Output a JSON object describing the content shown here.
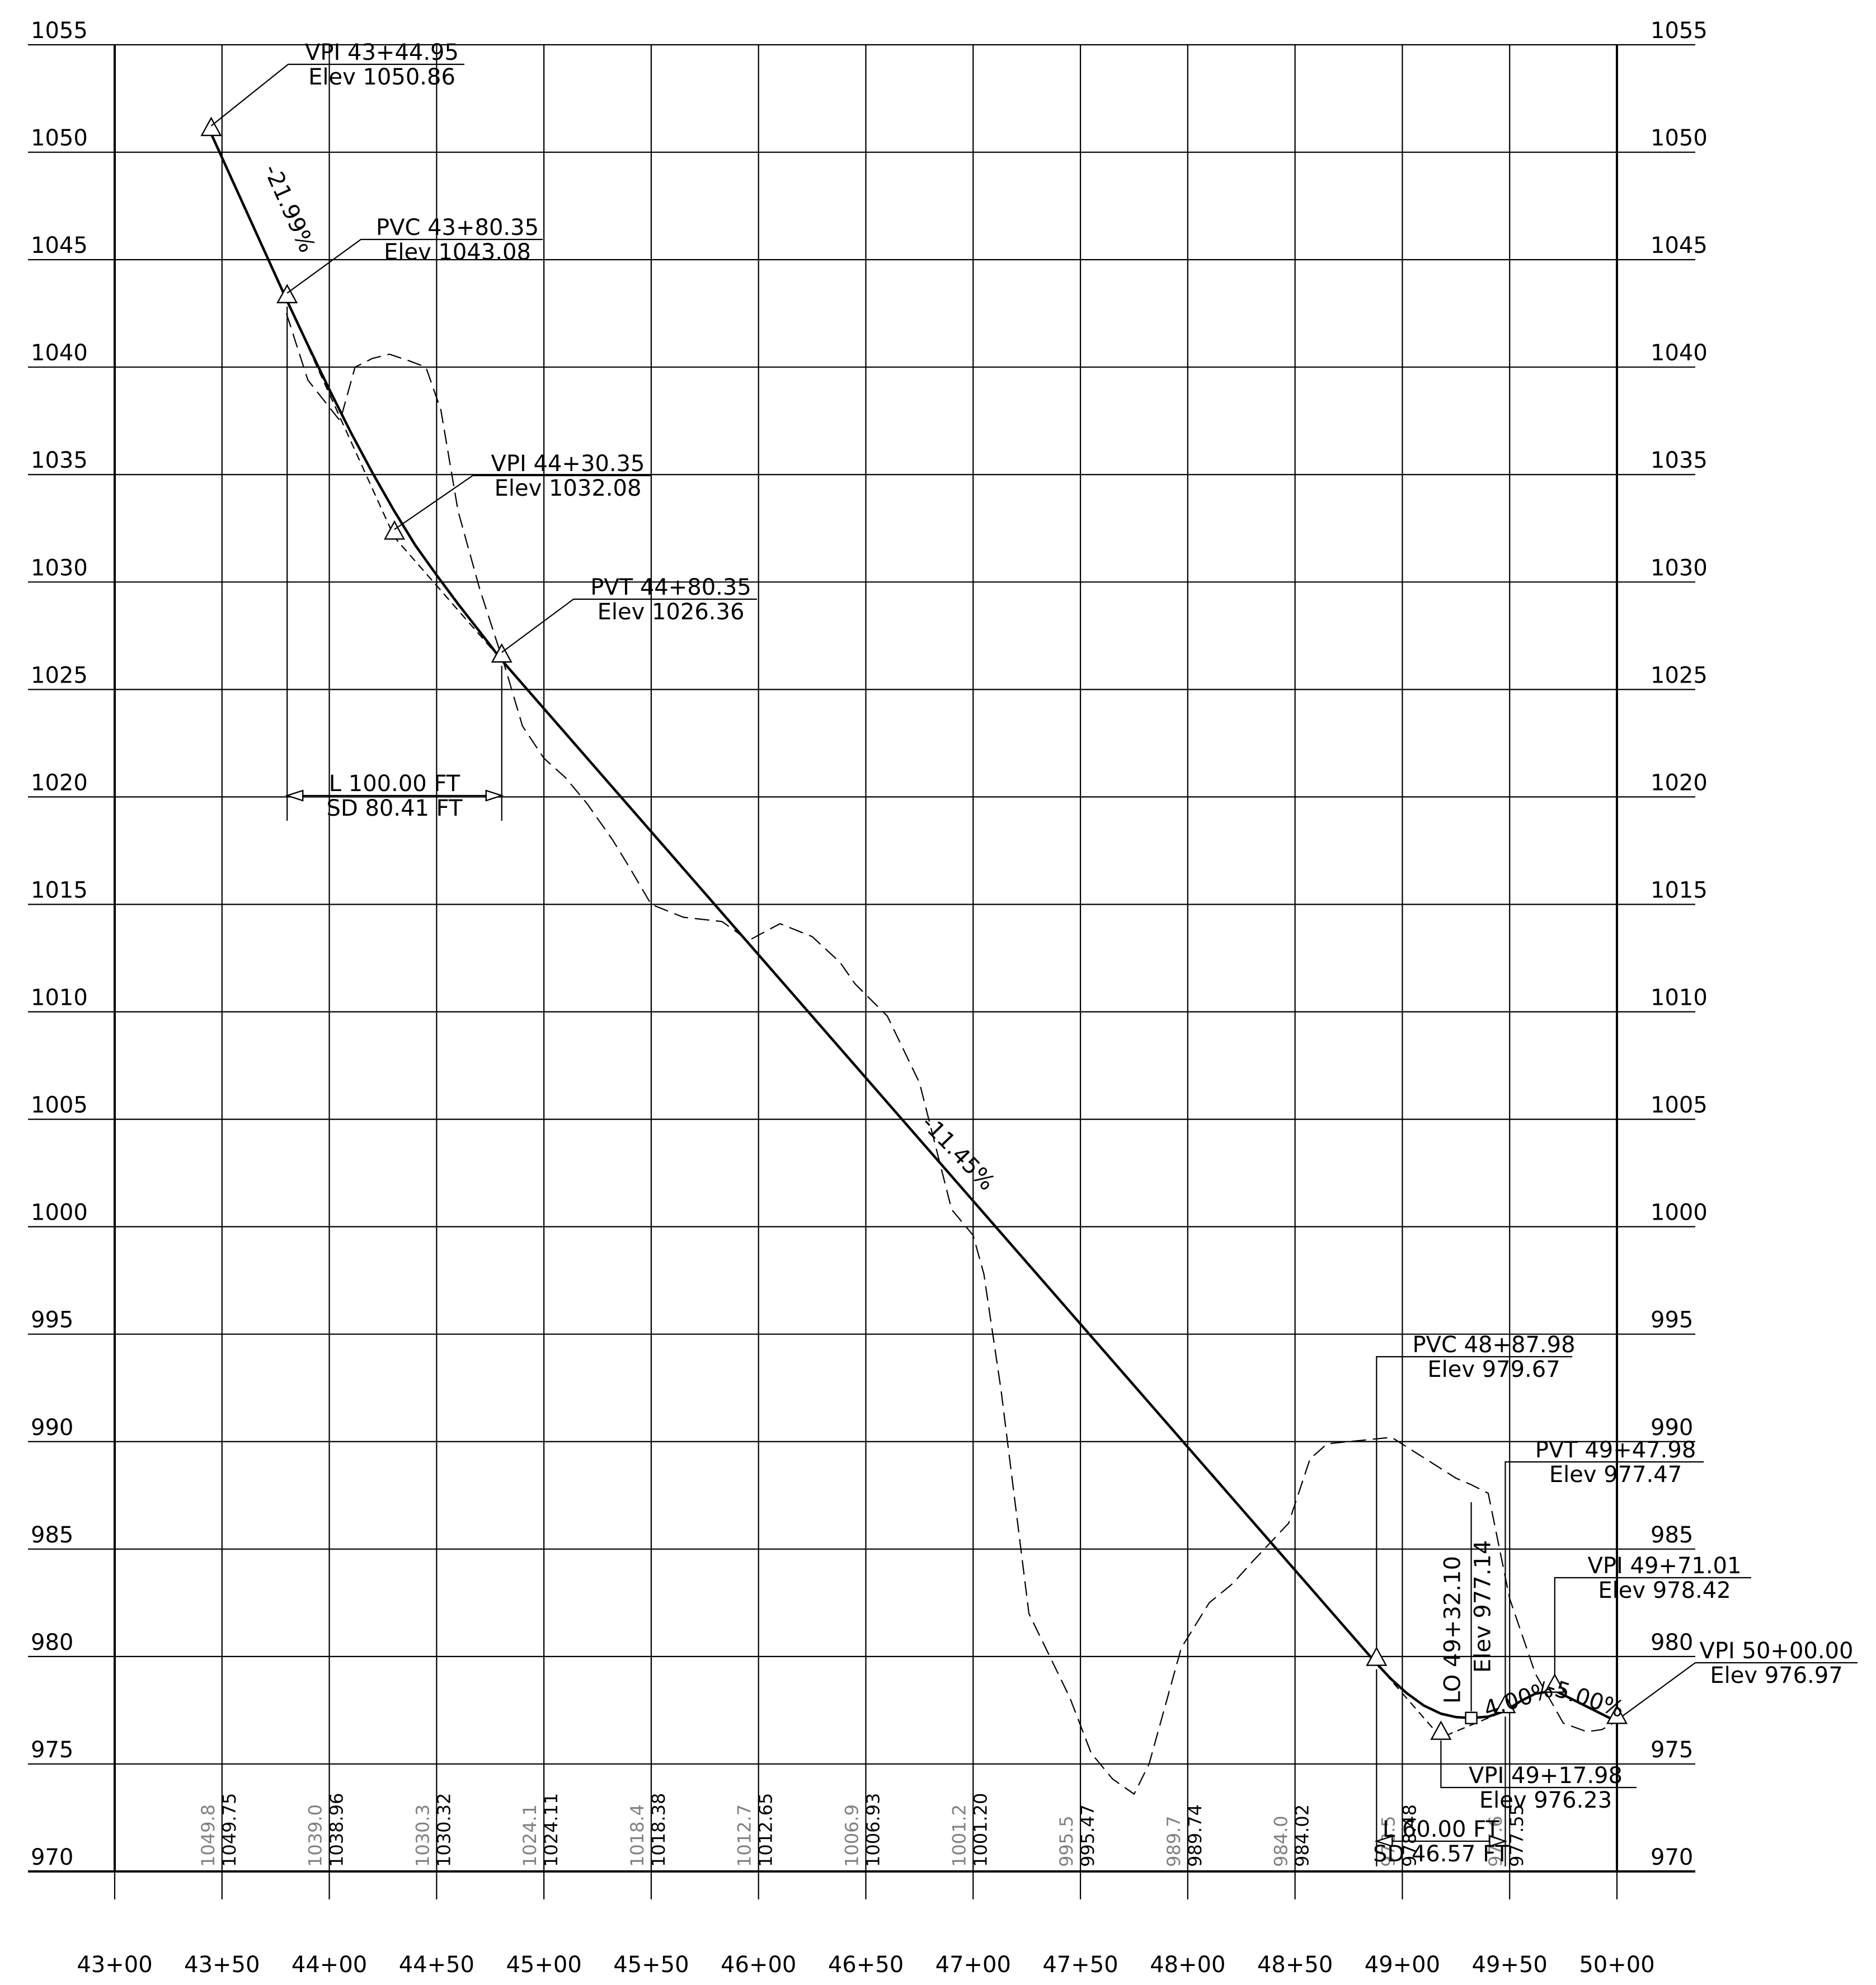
{
  "chart_data": {
    "type": "line",
    "y_ticks": [
      "1055",
      "1050",
      "1045",
      "1040",
      "1035",
      "1030",
      "1025",
      "1020",
      "1015",
      "1010",
      "1005",
      "1000",
      "995",
      "990",
      "985",
      "980",
      "975",
      "970"
    ],
    "x_ticks": [
      "43+00",
      "43+50",
      "44+00",
      "44+50",
      "45+00",
      "45+50",
      "46+00",
      "46+50",
      "47+00",
      "47+50",
      "48+00",
      "48+50",
      "49+00",
      "49+50",
      "50+00"
    ],
    "ylim": [
      970,
      1055
    ],
    "xlim": [
      4300,
      5000
    ],
    "elevation_labels": [
      {
        "station": 4350,
        "existing": "1049.8",
        "proposed": "1049.75"
      },
      {
        "station": 4400,
        "existing": "1039.0",
        "proposed": "1038.96"
      },
      {
        "station": 4450,
        "existing": "1030.3",
        "proposed": "1030.32"
      },
      {
        "station": 4500,
        "existing": "1024.1",
        "proposed": "1024.11"
      },
      {
        "station": 4550,
        "existing": "1018.4",
        "proposed": "1018.38"
      },
      {
        "station": 4600,
        "existing": "1012.7",
        "proposed": "1012.65"
      },
      {
        "station": 4650,
        "existing": "1006.9",
        "proposed": "1006.93"
      },
      {
        "station": 4700,
        "existing": "1001.2",
        "proposed": "1001.20"
      },
      {
        "station": 4750,
        "existing": "995.5",
        "proposed": "995.47"
      },
      {
        "station": 4800,
        "existing": "989.7",
        "proposed": "989.74"
      },
      {
        "station": 4850,
        "existing": "984.0",
        "proposed": "984.02"
      },
      {
        "station": 4900,
        "existing": "978.5",
        "proposed": "978.48"
      },
      {
        "station": 4950,
        "existing": "977.6",
        "proposed": "977.55"
      }
    ],
    "series": [
      {
        "style": "solid",
        "x": [
          4344.95,
          4380.35,
          4390,
          4400,
          4410,
          4420,
          4430,
          4440,
          4450,
          4460,
          4470,
          4480.35,
          4887.98,
          4895,
          4902,
          4910,
          4918,
          4925,
          4932.1,
          4940,
          4947.98,
          4955,
          4962,
          4971.01,
          4985,
          5000
        ],
        "y": [
          1050.86,
          1043.08,
          1041.03,
          1038.96,
          1036.97,
          1035.1,
          1033.35,
          1031.72,
          1030.32,
          1028.98,
          1027.7,
          1026.36,
          979.67,
          978.93,
          978.3,
          977.72,
          977.34,
          977.18,
          977.14,
          977.2,
          977.47,
          977.92,
          978.27,
          978.42,
          977.72,
          976.97
        ]
      },
      {
        "style": "dashed",
        "x": [
          4380,
          4390,
          4405,
          4412,
          4420,
          4428,
          4437,
          4445,
          4452,
          4460,
          4470,
          4482,
          4490,
          4500,
          4510,
          4520,
          4532,
          4540,
          4550,
          4565,
          4583,
          4590,
          4595,
          4610,
          4625,
          4638,
          4645,
          4660,
          4675,
          4690,
          4700,
          4705,
          4713,
          4726,
          4745,
          4755,
          4765,
          4775,
          4782,
          4797,
          4810,
          4821,
          4830,
          4847,
          4857,
          4865,
          4895,
          4925,
          4932,
          4940,
          4950,
          4962,
          4975,
          4986,
          4993,
          5000
        ],
        "y": [
          1042.5,
          1039.4,
          1037.5,
          1040.0,
          1040.4,
          1040.6,
          1040.3,
          1040.0,
          1038.0,
          1033.3,
          1029.7,
          1026.0,
          1023.3,
          1021.8,
          1020.9,
          1019.7,
          1018.0,
          1016.7,
          1015.0,
          1014.4,
          1014.2,
          1013.7,
          1013.3,
          1014.1,
          1013.5,
          1012.3,
          1011.3,
          1009.8,
          1006.7,
          1000.8,
          999.6,
          997.8,
          992.4,
          982.0,
          978.1,
          975.5,
          974.3,
          973.6,
          975.0,
          980.4,
          982.5,
          983.4,
          984.4,
          986.2,
          989.2,
          989.9,
          990.2,
          988.3,
          988.0,
          987.6,
          982.7,
          979.2,
          976.9,
          976.5,
          976.6,
          977.0
        ]
      }
    ],
    "points": [
      {
        "station": 4344.95,
        "elev": 1050.86,
        "label1": "VPI 43+44.95",
        "label2": "Elev 1050.86"
      },
      {
        "station": 4380.35,
        "elev": 1043.08,
        "label1": "PVC 43+80.35",
        "label2": "Elev 1043.08"
      },
      {
        "station": 4430.35,
        "elev": 1032.08,
        "label1": "VPI 44+30.35",
        "label2": "Elev 1032.08"
      },
      {
        "station": 4480.35,
        "elev": 1026.36,
        "label1": "PVT 44+80.35",
        "label2": "Elev 1026.36"
      },
      {
        "station": 4887.98,
        "elev": 979.67,
        "label1": "PVC 48+87.98",
        "label2": "Elev 979.67"
      },
      {
        "station": 4947.98,
        "elev": 977.47,
        "label1": "PVT 49+47.98",
        "label2": "Elev 977.47"
      },
      {
        "station": 4971.01,
        "elev": 978.42,
        "label1": "VPI 49+71.01",
        "label2": "Elev 978.42"
      },
      {
        "station": 5000.0,
        "elev": 976.97,
        "label1": "VPI 50+00.00",
        "label2": "Elev 976.97"
      },
      {
        "station": 4917.98,
        "elev": 976.23,
        "label1": "VPI 49+17.98",
        "label2": "Elev 976.23"
      },
      {
        "station": 4932.1,
        "elev": 977.14,
        "label1": "LO 49+32.10",
        "label2": "Elev 977.14"
      }
    ],
    "curve_labels": [
      {
        "line1": "L 100.00 FT",
        "line2": "SD 80.41 FT"
      },
      {
        "line1": "L 60.00 FT",
        "line2": "SD 46.57 FT"
      }
    ],
    "grade_labels": [
      "-21.99%",
      "-11.45%",
      "4.00%",
      "-5.00%"
    ]
  }
}
